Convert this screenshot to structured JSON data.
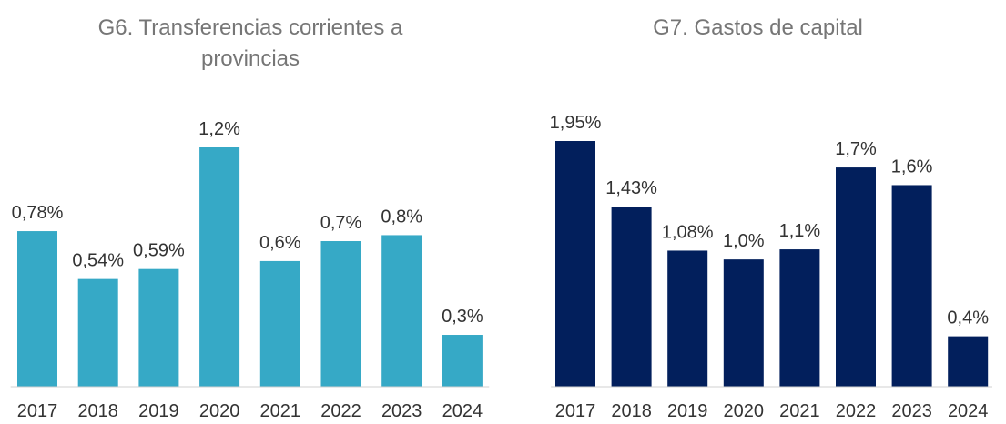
{
  "chart_data": [
    {
      "type": "bar",
      "title": "G6. Transferencias corrientes a provincias",
      "categories": [
        "2017",
        "2018",
        "2019",
        "2020",
        "2021",
        "2022",
        "2023",
        "2024"
      ],
      "values": [
        0.78,
        0.54,
        0.59,
        1.2,
        0.63,
        0.73,
        0.76,
        0.26
      ],
      "value_labels": [
        "0,78%",
        "0,54%",
        "0,59%",
        "1,2%",
        "0,6%",
        "0,7%",
        "0,8%",
        "0,3%"
      ],
      "color": "#36a9c6",
      "ylim": [
        0,
        1.2
      ]
    },
    {
      "type": "bar",
      "title": "G7. Gastos de capital",
      "categories": [
        "2017",
        "2018",
        "2019",
        "2020",
        "2021",
        "2022",
        "2023",
        "2024"
      ],
      "values": [
        1.95,
        1.43,
        1.08,
        1.01,
        1.09,
        1.74,
        1.6,
        0.4
      ],
      "value_labels": [
        "1,95%",
        "1,43%",
        "1,08%",
        "1,0%",
        "1,1%",
        "1,7%",
        "1,6%",
        "0,4%"
      ],
      "color": "#021f5c",
      "ylim": [
        0,
        1.95
      ]
    }
  ]
}
